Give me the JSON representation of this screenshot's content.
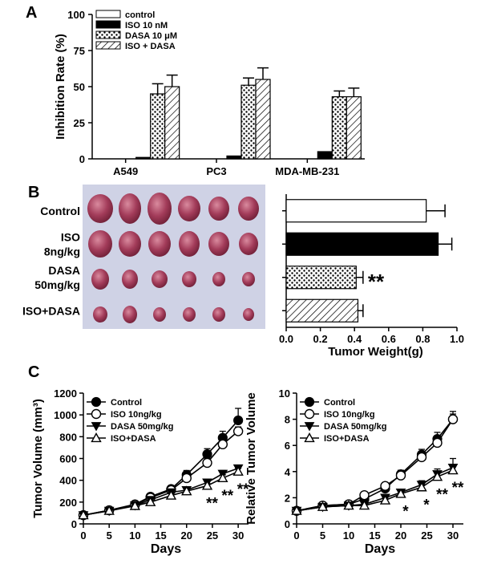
{
  "panel_labels": {
    "a": "A",
    "b": "B",
    "c": "C"
  },
  "colors": {
    "ink": "#000000",
    "paper": "#ffffff",
    "photo_bg": "#bfc3dd",
    "tumor": "#a03a58"
  },
  "chart_data": [
    {
      "id": "A",
      "type": "bar",
      "ylabel": "Inhibition Rate (%)",
      "xlabel": "",
      "ylim": [
        0,
        100
      ],
      "yticks": [
        "0",
        "25",
        "50",
        "75",
        "100"
      ],
      "categories": [
        "A549",
        "PC3",
        "MDA-MB-231"
      ],
      "legend_position": "top-left",
      "series": [
        {
          "name": "control",
          "fill": "white",
          "values": [
            0,
            0,
            0
          ],
          "errors": [
            0,
            0,
            0
          ]
        },
        {
          "name": "ISO 10 nM",
          "fill": "black",
          "values": [
            1,
            2,
            5
          ],
          "errors": [
            0.5,
            0.5,
            0.5
          ]
        },
        {
          "name": "DASA 10 μM",
          "fill": "dots",
          "values": [
            45,
            51,
            43
          ],
          "errors": [
            7,
            5,
            4
          ]
        },
        {
          "name": "ISO + DASA",
          "fill": "hatch",
          "values": [
            50,
            55,
            43
          ],
          "errors": [
            8,
            8,
            6
          ]
        }
      ]
    },
    {
      "id": "B",
      "type": "bar",
      "orientation": "horizontal",
      "xlabel": "Tumor Weight(g)",
      "ylabel": "",
      "xlim": [
        0,
        1.0
      ],
      "xticks": [
        "0.0",
        "0.2",
        "0.4",
        "0.6",
        "0.8",
        "1.0"
      ],
      "categories": [
        "Control",
        "ISO 8ng/kg",
        "DASA 50mg/kg",
        "ISO+DASA"
      ],
      "category_lines": [
        [
          "Control"
        ],
        [
          "ISO",
          "8ng/kg"
        ],
        [
          "DASA",
          "50mg/kg"
        ],
        [
          "ISO+DASA"
        ]
      ],
      "fills": [
        "white",
        "black",
        "dots",
        "hatch"
      ],
      "values": [
        0.82,
        0.89,
        0.41,
        0.42
      ],
      "errors": [
        0.11,
        0.08,
        0.04,
        0.03
      ],
      "annotations": [
        {
          "category": "DASA 50mg/kg",
          "text": "**"
        }
      ]
    },
    {
      "id": "C-left",
      "type": "line",
      "xlabel": "Days",
      "ylabel": "Tumor Volume (mm³)",
      "xlim": [
        0,
        32
      ],
      "ylim": [
        0,
        1200
      ],
      "xticks": [
        "0",
        "5",
        "10",
        "15",
        "20",
        "25",
        "30"
      ],
      "yticks": [
        "0",
        "200",
        "400",
        "600",
        "800",
        "1000",
        "1200"
      ],
      "legend_position": "top-left",
      "x": [
        0,
        5,
        10,
        13,
        17,
        20,
        24,
        27,
        30
      ],
      "series": [
        {
          "name": "Control",
          "marker": "circle-filled",
          "values": [
            80,
            125,
            180,
            250,
            320,
            450,
            640,
            790,
            950
          ],
          "errors": [
            10,
            10,
            10,
            15,
            20,
            40,
            50,
            60,
            110
          ]
        },
        {
          "name": "ISO 10ng/kg",
          "marker": "circle-open",
          "values": [
            80,
            125,
            175,
            240,
            310,
            420,
            560,
            730,
            850
          ],
          "errors": [
            10,
            10,
            10,
            10,
            20,
            40,
            40,
            50,
            40
          ]
        },
        {
          "name": "DASA 50mg/kg",
          "marker": "triangle-down-filled",
          "values": [
            80,
            120,
            170,
            220,
            290,
            310,
            380,
            460,
            510
          ],
          "errors": [
            10,
            10,
            10,
            10,
            20,
            20,
            20,
            30,
            30
          ]
        },
        {
          "name": "ISO+DASA",
          "marker": "triangle-up-open",
          "values": [
            80,
            120,
            165,
            200,
            260,
            300,
            350,
            420,
            480
          ],
          "errors": [
            10,
            10,
            10,
            10,
            20,
            20,
            20,
            30,
            30
          ]
        }
      ],
      "annotations": [
        {
          "x": 24,
          "text": "**"
        },
        {
          "x": 27,
          "text": "**"
        },
        {
          "x": 30,
          "text": "**"
        }
      ]
    },
    {
      "id": "C-right",
      "type": "line",
      "xlabel": "Days",
      "ylabel": "Relative Tumor Volume",
      "xlim": [
        0,
        32
      ],
      "ylim": [
        0,
        10
      ],
      "xticks": [
        "0",
        "5",
        "10",
        "15",
        "20",
        "25",
        "30"
      ],
      "yticks": [
        "0",
        "2",
        "4",
        "6",
        "8",
        "10"
      ],
      "legend_position": "top-left",
      "x": [
        0,
        5,
        10,
        13,
        17,
        20,
        24,
        27,
        30
      ],
      "series": [
        {
          "name": "Control",
          "marker": "circle-filled",
          "values": [
            1.0,
            1.4,
            1.5,
            1.9,
            2.7,
            3.8,
            5.3,
            6.5,
            8.0
          ],
          "errors": [
            0.1,
            0.1,
            0.1,
            0.1,
            0.2,
            0.3,
            0.4,
            0.5,
            0.6
          ]
        },
        {
          "name": "ISO 10ng/kg",
          "marker": "circle-open",
          "values": [
            1.0,
            1.4,
            1.5,
            2.2,
            2.9,
            3.7,
            5.1,
            6.2,
            8.0
          ],
          "errors": [
            0.1,
            0.1,
            0.1,
            0.1,
            0.2,
            0.3,
            0.3,
            0.4,
            0.4
          ]
        },
        {
          "name": "DASA 50mg/kg",
          "marker": "triangle-down-filled",
          "values": [
            1.0,
            1.3,
            1.4,
            1.5,
            2.0,
            2.4,
            3.0,
            3.8,
            4.3
          ],
          "errors": [
            0.1,
            0.1,
            0.1,
            0.1,
            0.2,
            0.2,
            0.3,
            0.4,
            0.7
          ]
        },
        {
          "name": "ISO+DASA",
          "marker": "triangle-up-open",
          "values": [
            1.0,
            1.3,
            1.4,
            1.4,
            1.8,
            2.3,
            2.8,
            3.6,
            4.1
          ],
          "errors": [
            0.1,
            0.1,
            0.1,
            0.1,
            0.2,
            0.2,
            0.3,
            0.3,
            0.4
          ]
        }
      ],
      "annotations": [
        {
          "x": 20,
          "text": "*"
        },
        {
          "x": 24,
          "text": "*"
        },
        {
          "x": 27,
          "text": "**"
        },
        {
          "x": 30,
          "text": "**"
        }
      ]
    }
  ]
}
